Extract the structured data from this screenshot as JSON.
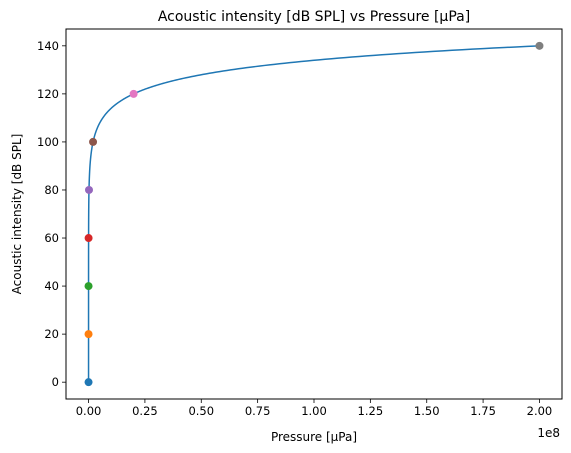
{
  "chart_data": {
    "type": "line",
    "title": "Acoustic intensity [dB SPL] vs Pressure [µPa]",
    "xlabel": "Pressure [µPa]",
    "ylabel": "Acoustic intensity [dB SPL]",
    "x_offset_label": "1e8",
    "xlim": [
      -10000000,
      210000000
    ],
    "ylim": [
      -7,
      147
    ],
    "xscale": 100000000,
    "x_ticks": [
      0,
      25000000,
      50000000,
      75000000,
      100000000,
      125000000,
      150000000,
      175000000,
      200000000
    ],
    "x_tick_labels": [
      "0.00",
      "0.25",
      "0.50",
      "0.75",
      "1.00",
      "1.25",
      "1.50",
      "1.75",
      "2.00"
    ],
    "y_ticks": [
      0,
      20,
      40,
      60,
      80,
      100,
      120,
      140
    ],
    "y_tick_labels": [
      "0",
      "20",
      "40",
      "60",
      "80",
      "100",
      "120",
      "140"
    ],
    "grid": false,
    "legend": "none",
    "curve": {
      "formula": "dB = 20*log10(p / 20)",
      "reference_pressure": 20,
      "x_min": 20,
      "x_max": 200000000,
      "color": "#1f77b4"
    },
    "series": [
      {
        "x": 20,
        "y": 0,
        "color": "#1f77b4"
      },
      {
        "x": 200,
        "y": 20,
        "color": "#ff7f0e"
      },
      {
        "x": 2000,
        "y": 40,
        "color": "#2ca02c"
      },
      {
        "x": 20000,
        "y": 60,
        "color": "#d62728"
      },
      {
        "x": 200000,
        "y": 80,
        "color": "#9467bd"
      },
      {
        "x": 2000000,
        "y": 100,
        "color": "#8c564b"
      },
      {
        "x": 20000000,
        "y": 120,
        "color": "#e377c2"
      },
      {
        "x": 200000000,
        "y": 140,
        "color": "#7f7f7f"
      }
    ]
  }
}
